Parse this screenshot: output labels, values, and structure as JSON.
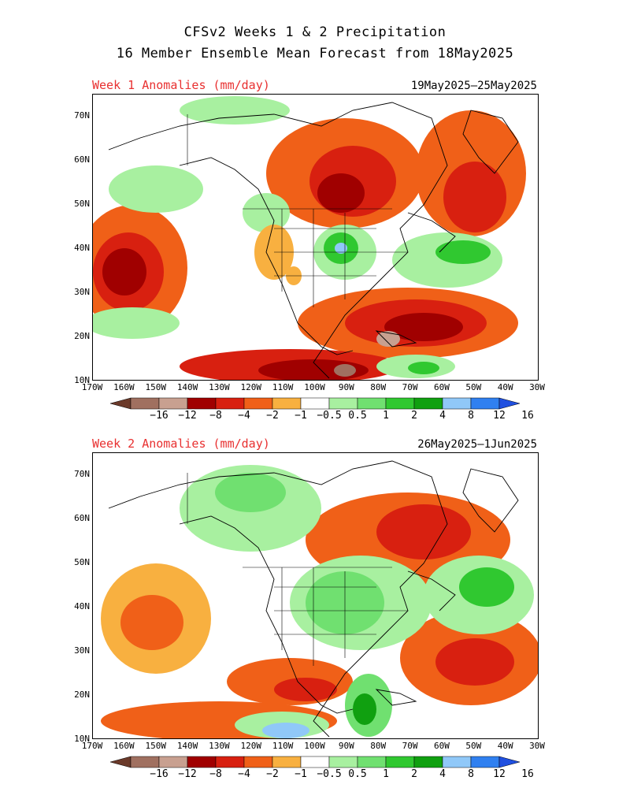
{
  "title_line1": "CFSv2 Weeks 1 & 2 Precipitation",
  "title_line2": "16 Member Ensemble Mean Forecast from 18May2025",
  "panels": [
    {
      "label": "Week 1 Anomalies (mm/day)",
      "dates": "19May2025–25May2025"
    },
    {
      "label": "Week 2 Anomalies (mm/day)",
      "dates": "26May2025–1Jun2025"
    }
  ],
  "lat_labels": [
    "70N",
    "60N",
    "50N",
    "40N",
    "30N",
    "20N",
    "10N"
  ],
  "lon_labels": [
    "170W",
    "160W",
    "150W",
    "140W",
    "130W",
    "120W",
    "110W",
    "100W",
    "90W",
    "80W",
    "70W",
    "60W",
    "50W",
    "40W",
    "30W"
  ],
  "colorbar_labels": [
    "−16",
    "−12",
    "−8",
    "−4",
    "−2",
    "−1",
    "−0.5",
    "0.5",
    "1",
    "2",
    "4",
    "8",
    "12",
    "16"
  ],
  "colorbar_colors": [
    "#6b3a2a",
    "#a07060",
    "#c8a090",
    "#a00000",
    "#d82010",
    "#f06018",
    "#f8b040",
    "#ffffff",
    "#a8f0a0",
    "#70e070",
    "#30c830",
    "#10a010",
    "#90c8f8",
    "#3080f0",
    "#2050e0"
  ],
  "colors": {
    "red_label": "#e83030",
    "dark_red": "#a00000",
    "red": "#d82010",
    "orange": "#f06018",
    "light_orange": "#f8b040",
    "light_green": "#a8f0a0",
    "green": "#70e070",
    "mid_green": "#30c830",
    "dark_green": "#10a010",
    "light_blue": "#90c8f8",
    "blue": "#3080f0",
    "brown": "#a07060",
    "pink_brown": "#c8a090"
  }
}
